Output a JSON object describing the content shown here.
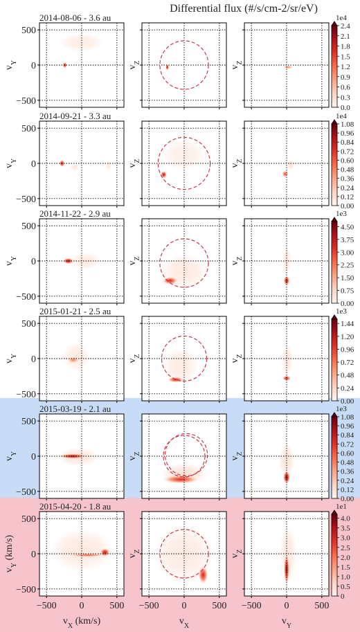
{
  "figure_title": "Differential flux (#/s/cm-2/sr/eV)",
  "colors": {
    "row5_background": "#c8dcf8",
    "row6_background": "#f8c4cc",
    "circle": "#c8283c",
    "grid": "#000000",
    "colormap": [
      "#fff5f0",
      "#fdd4c2",
      "#fca486",
      "#fb6b4b",
      "#e32f27",
      "#b11218",
      "#67000d"
    ]
  },
  "chart_data": {
    "type": "heatmap",
    "columns": [
      {
        "x_component": "vX",
        "y_component": "vY"
      },
      {
        "x_component": "vX",
        "y_component": "vZ"
      },
      {
        "x_component": "vY",
        "y_component": "vZ"
      }
    ],
    "axis_range_kms": [
      -600,
      600
    ],
    "ticks": [
      -500,
      0,
      500
    ],
    "x_labels": {
      "col1": "vX (km/s)",
      "col2": "vX",
      "col3": "vY"
    },
    "y_labels": {
      "row6_col1": "vY (km/s)",
      "col1": "vY",
      "col2": "vZ",
      "col3": "vZ"
    },
    "grid": "dotted at -500, 0, 500",
    "rows": [
      {
        "title": "2014-08-06 - 3.6 au",
        "colorbar": {
          "multiplier": "1e4",
          "ticks": [
            "2.4",
            "2.1",
            "1.8",
            "1.5",
            "1.2",
            "0.9",
            "0.6",
            "0.3",
            "0.0"
          ],
          "min": 0,
          "max": 2.4
        },
        "circles": [
          {
            "center": [
              0,
              0
            ],
            "radius": 345
          }
        ],
        "panels": [
          {
            "blobs": [
              {
                "x": -240,
                "y": 0,
                "rx": 30,
                "ry": 45,
                "intensity": 0.85
              },
              {
                "x": 0,
                "y": 320,
                "rx": 300,
                "ry": 130,
                "intensity": 0.05
              }
            ]
          },
          {
            "blobs": [
              {
                "x": -240,
                "y": -30,
                "rx": 25,
                "ry": 45,
                "intensity": 0.9
              }
            ]
          },
          {
            "blobs": [
              {
                "x": 20,
                "y": -30,
                "rx": 70,
                "ry": 25,
                "intensity": 0.45
              }
            ]
          }
        ]
      },
      {
        "title": "2014-09-21 - 3.3 au",
        "colorbar": {
          "multiplier": "1e4",
          "ticks": [
            "1.08",
            "0.96",
            "0.84",
            "0.72",
            "0.60",
            "0.48",
            "0.36",
            "0.24",
            "0.12",
            "0.00"
          ],
          "min": 0,
          "max": 1.08
        },
        "circles": [
          {
            "center": [
              0,
              0
            ],
            "radius": 370
          }
        ],
        "panels": [
          {
            "blobs": [
              {
                "x": -280,
                "y": 0,
                "rx": 40,
                "ry": 50,
                "intensity": 0.85
              },
              {
                "x": -100,
                "y": -60,
                "rx": 60,
                "ry": 50,
                "intensity": 0.08
              },
              {
                "x": 380,
                "y": -30,
                "rx": 40,
                "ry": 70,
                "intensity": 0.06
              }
            ]
          },
          {
            "blobs": [
              {
                "x": -290,
                "y": -160,
                "rx": 45,
                "ry": 55,
                "intensity": 0.85
              },
              {
                "x": 0,
                "y": 120,
                "rx": 300,
                "ry": 220,
                "intensity": 0.04
              }
            ]
          },
          {
            "blobs": [
              {
                "x": -20,
                "y": -150,
                "rx": 50,
                "ry": 50,
                "intensity": 0.6
              },
              {
                "x": 60,
                "y": -20,
                "rx": 50,
                "ry": 80,
                "intensity": 0.12
              }
            ]
          }
        ]
      },
      {
        "title": "2014-11-22 - 2.9 au",
        "colorbar": {
          "multiplier": "1e3",
          "ticks": [
            "4.50",
            "3.75",
            "3.00",
            "2.25",
            "1.50",
            "0.75",
            "0.00"
          ],
          "min": 0,
          "max": 4.8
        },
        "circles": [
          {
            "center": [
              0,
              -30
            ],
            "radius": 345
          }
        ],
        "panels": [
          {
            "blobs": [
              {
                "x": -190,
                "y": 0,
                "rx": 75,
                "ry": 45,
                "intensity": 0.9
              },
              {
                "x": 50,
                "y": 0,
                "rx": 220,
                "ry": 120,
                "intensity": 0.06
              }
            ]
          },
          {
            "blobs": [
              {
                "x": -200,
                "y": -280,
                "rx": 110,
                "ry": 55,
                "intensity": 0.75
              },
              {
                "x": 0,
                "y": -150,
                "rx": 330,
                "ry": 240,
                "intensity": 0.07
              }
            ]
          },
          {
            "blobs": [
              {
                "x": 0,
                "y": -280,
                "rx": 45,
                "ry": 70,
                "intensity": 0.9
              },
              {
                "x": 0,
                "y": 0,
                "rx": 60,
                "ry": 200,
                "intensity": 0.08
              }
            ]
          }
        ]
      },
      {
        "title": "2015-01-21 - 2.5 au",
        "colorbar": {
          "multiplier": "1e3",
          "ticks": [
            "1.44",
            "1.20",
            "0.96",
            "0.72",
            "0.48",
            "0.24",
            "0.00"
          ],
          "min": 0,
          "max": 1.52
        },
        "circles": [
          {
            "center": [
              0,
              0
            ],
            "radius": 320
          }
        ],
        "panels": [
          {
            "blobs": [
              {
                "x": -120,
                "y": -20,
                "rx": 80,
                "ry": 45,
                "intensity": 0.45
              },
              {
                "x": -80,
                "y": 30,
                "rx": 200,
                "ry": 200,
                "intensity": 0.06
              }
            ]
          },
          {
            "blobs": [
              {
                "x": -120,
                "y": -300,
                "rx": 120,
                "ry": 40,
                "intensity": 0.75
              },
              {
                "x": -50,
                "y": -100,
                "rx": 250,
                "ry": 250,
                "intensity": 0.06
              }
            ]
          },
          {
            "blobs": [
              {
                "x": 0,
                "y": -280,
                "rx": 60,
                "ry": 40,
                "intensity": 0.8
              },
              {
                "x": 10,
                "y": -20,
                "rx": 80,
                "ry": 220,
                "intensity": 0.08
              }
            ]
          }
        ]
      },
      {
        "title": "2015-03-19 - 2.1 au",
        "colorbar": {
          "multiplier": "1e3",
          "ticks": [
            "1.08",
            "0.96",
            "0.84",
            "0.72",
            "0.60",
            "0.48",
            "0.36",
            "0.24",
            "0.12",
            "0.00"
          ],
          "min": 0,
          "max": 1.08
        },
        "circles": [
          {
            "center": [
              0,
              0
            ],
            "radius": 295
          },
          {
            "center": [
              30,
              20
            ],
            "radius": 300
          }
        ],
        "panels": [
          {
            "blobs": [
              {
                "x": -130,
                "y": 0,
                "rx": 190,
                "ry": 35,
                "intensity": 0.9
              },
              {
                "x": -50,
                "y": -10,
                "rx": 300,
                "ry": 130,
                "intensity": 0.1
              }
            ]
          },
          {
            "blobs": [
              {
                "x": -50,
                "y": -330,
                "rx": 260,
                "ry": 60,
                "intensity": 0.7
              },
              {
                "x": 0,
                "y": -250,
                "rx": 330,
                "ry": 150,
                "intensity": 0.12
              }
            ]
          },
          {
            "blobs": [
              {
                "x": 0,
                "y": -300,
                "rx": 50,
                "ry": 95,
                "intensity": 1.0
              },
              {
                "x": 0,
                "y": -60,
                "rx": 110,
                "ry": 260,
                "intensity": 0.1
              }
            ]
          }
        ]
      },
      {
        "title": "2015-04-20 - 1.8 au",
        "colorbar": {
          "multiplier": "1e1",
          "ticks": [
            "4.0",
            "3.5",
            "3.0",
            "2.5",
            "2.0",
            "1.5",
            "1.0",
            "0.5",
            "0"
          ],
          "min": 0,
          "max": 4.2
        },
        "circles": [
          {
            "center": [
              0,
              0
            ],
            "radius": 345
          }
        ],
        "panels": [
          {
            "blobs": [
              {
                "x": 80,
                "y": -20,
                "rx": 260,
                "ry": 25,
                "intensity": 0.55
              },
              {
                "x": 330,
                "y": 20,
                "rx": 70,
                "ry": 60,
                "intensity": 0.85
              },
              {
                "x": 0,
                "y": 50,
                "rx": 450,
                "ry": 300,
                "intensity": 0.07
              }
            ]
          },
          {
            "blobs": [
              {
                "x": 270,
                "y": -300,
                "rx": 70,
                "ry": 130,
                "intensity": 0.75
              },
              {
                "x": 0,
                "y": 0,
                "rx": 420,
                "ry": 420,
                "intensity": 0.06
              }
            ]
          },
          {
            "blobs": [
              {
                "x": 0,
                "y": -220,
                "rx": 40,
                "ry": 220,
                "intensity": 0.95
              },
              {
                "x": 20,
                "y": 0,
                "rx": 120,
                "ry": 400,
                "intensity": 0.08
              }
            ]
          }
        ]
      }
    ]
  }
}
